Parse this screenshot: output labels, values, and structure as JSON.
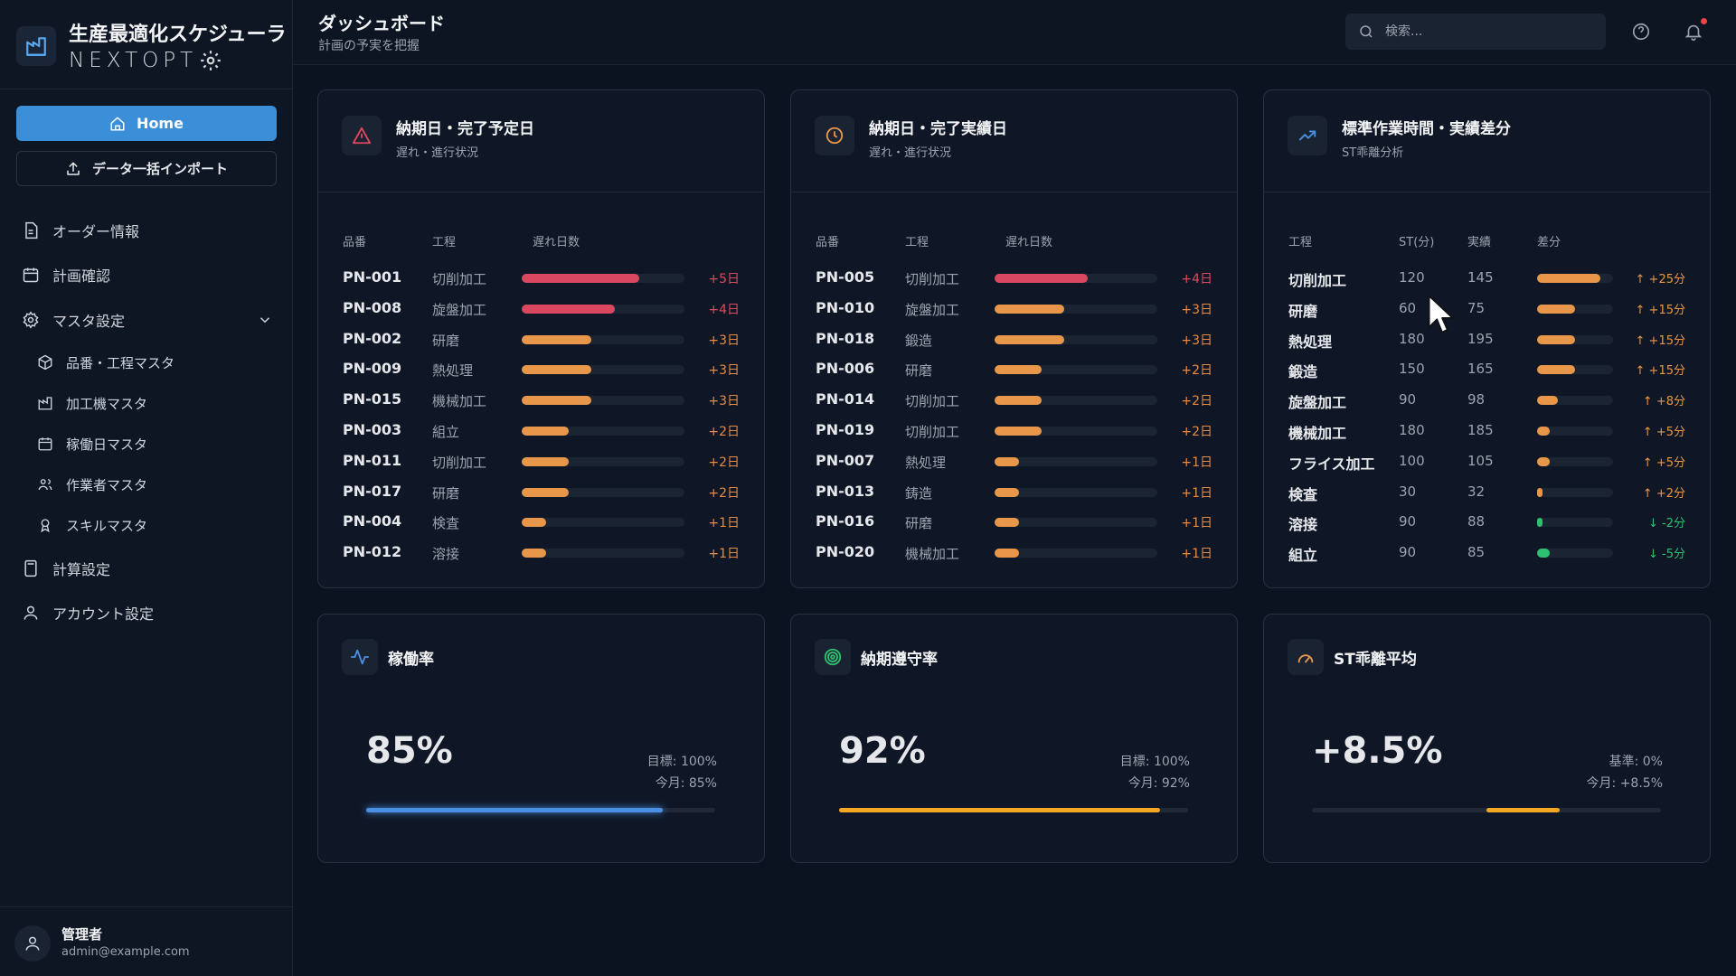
{
  "brand": {
    "title": "生産最適化スケジューラ",
    "subtitle": "NEXTOPT"
  },
  "sidebar": {
    "home_label": "Home",
    "import_label": "データ一括インポート",
    "items": [
      {
        "label": "オーダー情報",
        "icon": "document-icon"
      },
      {
        "label": "計画確認",
        "icon": "calendar-icon"
      },
      {
        "label": "マスタ設定",
        "icon": "gear-icon"
      },
      {
        "label": "計算設定",
        "icon": "calculator-icon"
      },
      {
        "label": "アカウント設定",
        "icon": "user-icon"
      }
    ],
    "sub_items": [
      {
        "label": "品番・工程マスタ",
        "icon": "box-icon"
      },
      {
        "label": "加工機マスタ",
        "icon": "factory-icon"
      },
      {
        "label": "稼働日マスタ",
        "icon": "calendar-icon"
      },
      {
        "label": "作業者マスタ",
        "icon": "users-icon"
      },
      {
        "label": "スキルマスタ",
        "icon": "award-icon"
      }
    ],
    "user": {
      "name": "管理者",
      "email": "admin@example.com"
    }
  },
  "header": {
    "title": "ダッシュボード",
    "subtitle": "計画の予実を把握",
    "search_placeholder": "検索..."
  },
  "cards": {
    "planned": {
      "title": "納期日・完了予定日",
      "subtitle": "遅れ・進行状況",
      "columns": [
        "品番",
        "工程",
        "遅れ日数"
      ],
      "rows": [
        {
          "pn": "PN-001",
          "process": "切削加工",
          "days": "+5日",
          "ratio": 0.72,
          "level": "high"
        },
        {
          "pn": "PN-008",
          "process": "旋盤加工",
          "days": "+4日",
          "ratio": 0.57,
          "level": "high"
        },
        {
          "pn": "PN-002",
          "process": "研磨",
          "days": "+3日",
          "ratio": 0.43,
          "level": "mid"
        },
        {
          "pn": "PN-009",
          "process": "熱処理",
          "days": "+3日",
          "ratio": 0.43,
          "level": "mid"
        },
        {
          "pn": "PN-015",
          "process": "機械加工",
          "days": "+3日",
          "ratio": 0.43,
          "level": "mid"
        },
        {
          "pn": "PN-003",
          "process": "組立",
          "days": "+2日",
          "ratio": 0.29,
          "level": "mid"
        },
        {
          "pn": "PN-011",
          "process": "切削加工",
          "days": "+2日",
          "ratio": 0.29,
          "level": "mid"
        },
        {
          "pn": "PN-017",
          "process": "研磨",
          "days": "+2日",
          "ratio": 0.29,
          "level": "mid"
        },
        {
          "pn": "PN-004",
          "process": "検査",
          "days": "+1日",
          "ratio": 0.15,
          "level": "mid"
        },
        {
          "pn": "PN-012",
          "process": "溶接",
          "days": "+1日",
          "ratio": 0.15,
          "level": "mid"
        }
      ]
    },
    "actual": {
      "title": "納期日・完了実績日",
      "subtitle": "遅れ・進行状況",
      "columns": [
        "品番",
        "工程",
        "遅れ日数"
      ],
      "rows": [
        {
          "pn": "PN-005",
          "process": "切削加工",
          "days": "+4日",
          "ratio": 0.57,
          "level": "high"
        },
        {
          "pn": "PN-010",
          "process": "旋盤加工",
          "days": "+3日",
          "ratio": 0.43,
          "level": "mid"
        },
        {
          "pn": "PN-018",
          "process": "鍛造",
          "days": "+3日",
          "ratio": 0.43,
          "level": "mid"
        },
        {
          "pn": "PN-006",
          "process": "研磨",
          "days": "+2日",
          "ratio": 0.29,
          "level": "mid"
        },
        {
          "pn": "PN-014",
          "process": "切削加工",
          "days": "+2日",
          "ratio": 0.29,
          "level": "mid"
        },
        {
          "pn": "PN-019",
          "process": "切削加工",
          "days": "+2日",
          "ratio": 0.29,
          "level": "mid"
        },
        {
          "pn": "PN-007",
          "process": "熱処理",
          "days": "+1日",
          "ratio": 0.15,
          "level": "mid"
        },
        {
          "pn": "PN-013",
          "process": "鋳造",
          "days": "+1日",
          "ratio": 0.15,
          "level": "mid"
        },
        {
          "pn": "PN-016",
          "process": "研磨",
          "days": "+1日",
          "ratio": 0.15,
          "level": "mid"
        },
        {
          "pn": "PN-020",
          "process": "機械加工",
          "days": "+1日",
          "ratio": 0.15,
          "level": "mid"
        }
      ]
    },
    "st": {
      "title": "標準作業時間・実績差分",
      "subtitle": "ST乖離分析",
      "columns": [
        "工程",
        "ST(分)",
        "実績",
        "差分"
      ],
      "rows": [
        {
          "process": "切削加工",
          "st": "120",
          "actual": "145",
          "diff": "↑ +25分",
          "ratio": 0.83,
          "dir": "up"
        },
        {
          "process": "研磨",
          "st": "60",
          "actual": "75",
          "diff": "↑ +15分",
          "ratio": 0.5,
          "dir": "up"
        },
        {
          "process": "熱処理",
          "st": "180",
          "actual": "195",
          "diff": "↑ +15分",
          "ratio": 0.5,
          "dir": "up"
        },
        {
          "process": "鍛造",
          "st": "150",
          "actual": "165",
          "diff": "↑ +15分",
          "ratio": 0.5,
          "dir": "up"
        },
        {
          "process": "旋盤加工",
          "st": "90",
          "actual": "98",
          "diff": "↑ +8分",
          "ratio": 0.27,
          "dir": "up"
        },
        {
          "process": "機械加工",
          "st": "180",
          "actual": "185",
          "diff": "↑ +5分",
          "ratio": 0.17,
          "dir": "up"
        },
        {
          "process": "フライス加工",
          "st": "100",
          "actual": "105",
          "diff": "↑ +5分",
          "ratio": 0.17,
          "dir": "up"
        },
        {
          "process": "検査",
          "st": "30",
          "actual": "32",
          "diff": "↑ +2分",
          "ratio": 0.07,
          "dir": "up"
        },
        {
          "process": "溶接",
          "st": "90",
          "actual": "88",
          "diff": "↓ -2分",
          "ratio": 0.07,
          "dir": "down"
        },
        {
          "process": "組立",
          "st": "90",
          "actual": "85",
          "diff": "↓ -5分",
          "ratio": 0.17,
          "dir": "down"
        }
      ]
    }
  },
  "kpis": {
    "uptime": {
      "title": "稼働率",
      "value": "85%",
      "meta1": "目標: 100%",
      "meta2": "今月: 85%",
      "progress": 0.85,
      "offset": 0,
      "color": "#4a90e2"
    },
    "delivery": {
      "title": "納期遵守率",
      "value": "92%",
      "meta1": "目標: 100%",
      "meta2": "今月: 92%",
      "progress": 0.92,
      "offset": 0,
      "color": "#f5a623"
    },
    "st_avg": {
      "title": "ST乖離平均",
      "value": "+8.5%",
      "meta1": "基準: 0%",
      "meta2": "今月: +8.5%",
      "progress": 0.21,
      "offset": 0.5,
      "color": "#f5a623"
    }
  },
  "colors": {
    "high": "#d9485f",
    "mid": "#e8974a",
    "up_bar": "#e8974a",
    "down_bar": "#2fbf71",
    "up_text": "#e8974a",
    "down_text": "#2fbf71",
    "late_high_text": "#e0475e",
    "late_mid_text": "#ea8a3f"
  }
}
